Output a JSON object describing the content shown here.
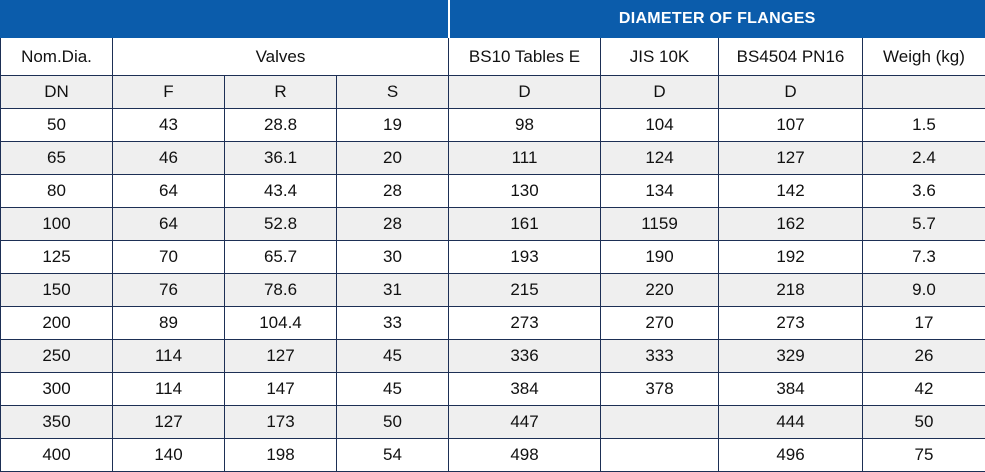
{
  "header": {
    "title": "DIAMETER OF FLANGES"
  },
  "table": {
    "columns": [
      "Nom.Dia.",
      "Valves",
      "BS10 Tables E",
      "JIS 10K",
      "BS4504 PN16",
      "Weigh (kg)"
    ],
    "units": [
      "DN",
      "F",
      "R",
      "S",
      "D",
      "D",
      "D",
      null
    ],
    "rows": [
      [
        "50",
        "43",
        "28.8",
        "19",
        "98",
        "104",
        "107",
        "1.5"
      ],
      [
        "65",
        "46",
        "36.1",
        "20",
        "111",
        "124",
        "127",
        "2.4"
      ],
      [
        "80",
        "64",
        "43.4",
        "28",
        "130",
        "134",
        "142",
        "3.6"
      ],
      [
        "100",
        "64",
        "52.8",
        "28",
        "161",
        "1159",
        "162",
        "5.7"
      ],
      [
        "125",
        "70",
        "65.7",
        "30",
        "193",
        "190",
        "192",
        "7.3"
      ],
      [
        "150",
        "76",
        "78.6",
        "31",
        "215",
        "220",
        "218",
        "9.0"
      ],
      [
        "200",
        "89",
        "104.4",
        "33",
        "273",
        "270",
        "273",
        "17"
      ],
      [
        "250",
        "114",
        "127",
        "45",
        "336",
        "333",
        "329",
        "26"
      ],
      [
        "300",
        "114",
        "147",
        "45",
        "384",
        "378",
        "384",
        "42"
      ],
      [
        "350",
        "127",
        "173",
        "50",
        "447",
        null,
        "444",
        "50"
      ],
      [
        "400",
        "140",
        "198",
        "54",
        "498",
        null,
        "496",
        "75"
      ]
    ]
  }
}
